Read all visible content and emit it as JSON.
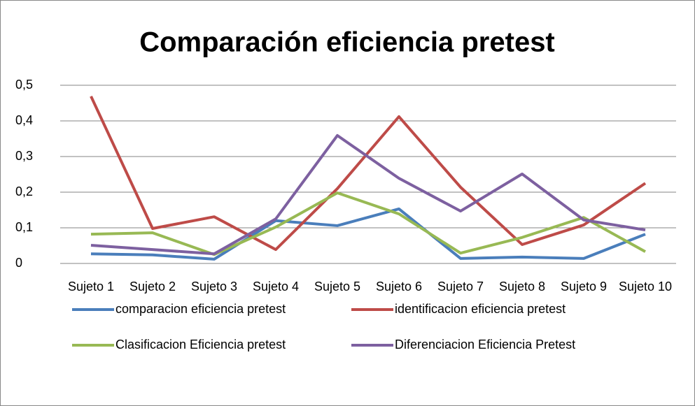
{
  "chart_data": {
    "type": "line",
    "title": "Comparación eficiencia pretest",
    "categories": [
      "Sujeto 1",
      "Sujeto 2",
      "Sujeto 3",
      "Sujeto 4",
      "Sujeto 5",
      "Sujeto 6",
      "Sujeto 7",
      "Sujeto 8",
      "Sujeto 9",
      "Sujeto 10"
    ],
    "series": [
      {
        "name": "comparacion eficiencia pretest",
        "color": "#4a7ebb",
        "values": [
          0.027,
          0.024,
          0.012,
          0.12,
          0.106,
          0.153,
          0.014,
          0.018,
          0.014,
          0.082
        ]
      },
      {
        "name": "identificacion eficiencia pretest",
        "color": "#be4b48",
        "values": [
          0.469,
          0.098,
          0.131,
          0.039,
          0.21,
          0.412,
          0.214,
          0.053,
          0.108,
          0.225
        ]
      },
      {
        "name": "Clasificacion Eficiencia pretest",
        "color": "#98b954",
        "values": [
          0.082,
          0.086,
          0.025,
          0.102,
          0.198,
          0.139,
          0.029,
          0.073,
          0.129,
          0.033
        ]
      },
      {
        "name": "Diferenciacion Eficiencia Pretest",
        "color": "#7d60a0",
        "values": [
          0.051,
          0.039,
          0.027,
          0.125,
          0.359,
          0.239,
          0.147,
          0.251,
          0.122,
          0.094
        ]
      }
    ],
    "ylim": [
      0,
      0.5
    ],
    "yticks": [
      0,
      {
        "value": 0.1,
        "label": "0,1"
      },
      {
        "value": 0.2,
        "label": "0,2"
      },
      {
        "value": 0.3,
        "label": "0,3"
      },
      {
        "value": 0.4,
        "label": "0,4"
      },
      {
        "value": 0.5,
        "label": "0,5"
      }
    ],
    "grid": true,
    "legend": "bottom"
  }
}
